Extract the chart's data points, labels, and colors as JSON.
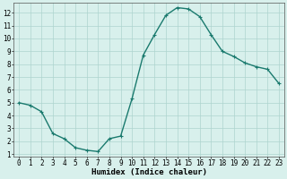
{
  "x": [
    0,
    1,
    2,
    3,
    4,
    5,
    6,
    7,
    8,
    9,
    10,
    11,
    12,
    13,
    14,
    15,
    16,
    17,
    18,
    19,
    20,
    21,
    22,
    23
  ],
  "y": [
    5.0,
    4.8,
    4.3,
    2.6,
    2.2,
    1.5,
    1.3,
    1.2,
    2.2,
    2.4,
    5.3,
    8.7,
    10.3,
    11.8,
    12.4,
    12.3,
    11.7,
    10.3,
    9.0,
    8.6,
    8.1,
    7.8,
    7.6,
    6.5
  ],
  "line_color": "#1a7a6e",
  "marker": "+",
  "marker_size": 3,
  "marker_edge_width": 0.8,
  "background_color": "#d8f0ec",
  "grid_color": "#aed4ce",
  "xlabel": "Humidex (Indice chaleur)",
  "xlim": [
    -0.5,
    23.5
  ],
  "ylim": [
    0.8,
    12.8
  ],
  "yticks": [
    1,
    2,
    3,
    4,
    5,
    6,
    7,
    8,
    9,
    10,
    11,
    12
  ],
  "xticks": [
    0,
    1,
    2,
    3,
    4,
    5,
    6,
    7,
    8,
    9,
    10,
    11,
    12,
    13,
    14,
    15,
    16,
    17,
    18,
    19,
    20,
    21,
    22,
    23
  ],
  "xlabel_fontsize": 6.5,
  "tick_fontsize": 5.5,
  "line_width": 1.0,
  "fig_width": 3.2,
  "fig_height": 2.0,
  "dpi": 100
}
